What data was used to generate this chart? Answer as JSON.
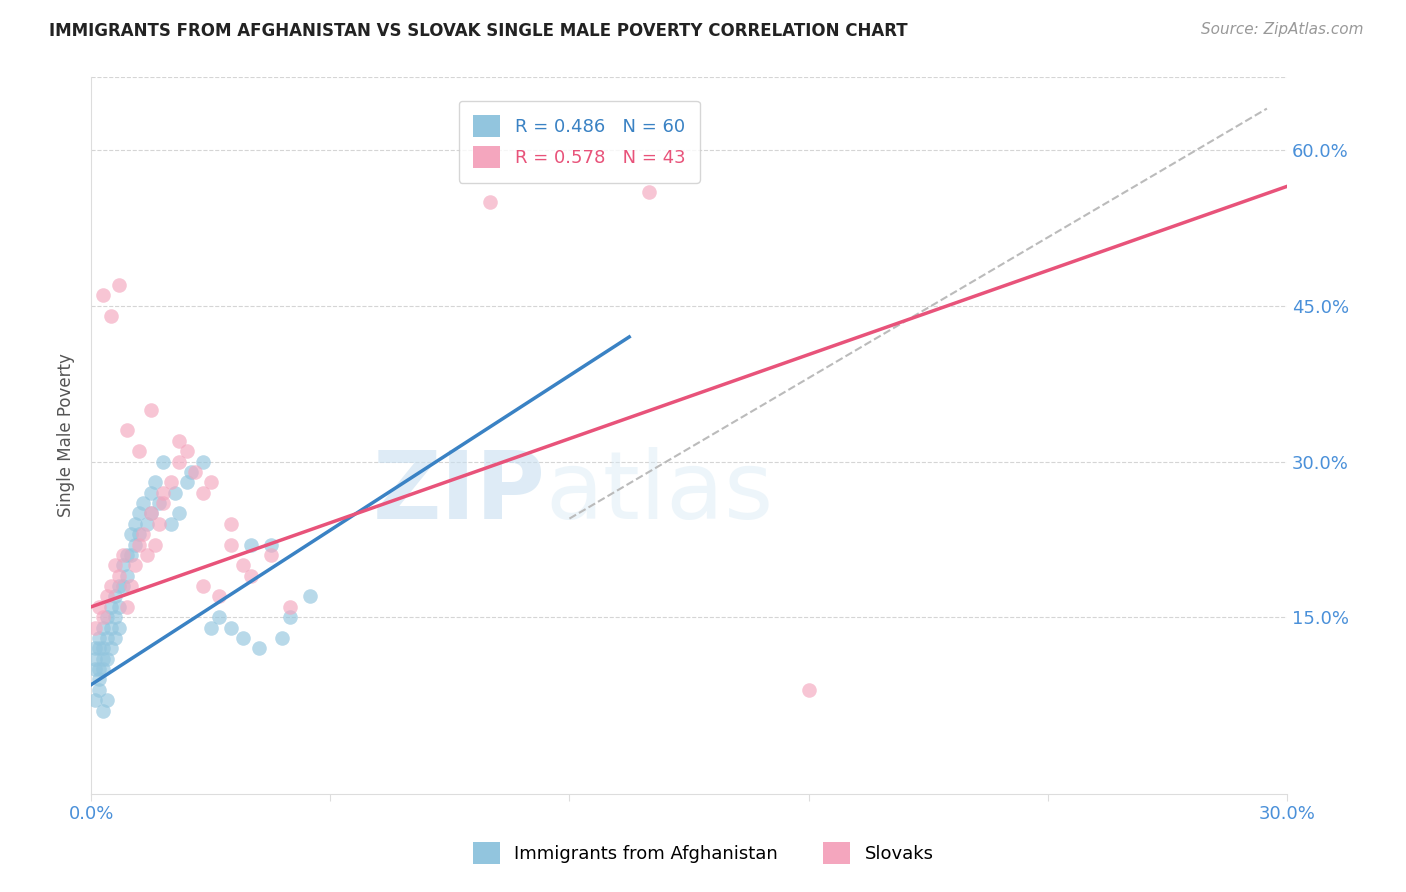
{
  "title": "IMMIGRANTS FROM AFGHANISTAN VS SLOVAK SINGLE MALE POVERTY CORRELATION CHART",
  "source": "Source: ZipAtlas.com",
  "ylabel": "Single Male Poverty",
  "ytick_labels": [
    "15.0%",
    "30.0%",
    "45.0%",
    "60.0%"
  ],
  "ytick_values": [
    0.15,
    0.3,
    0.45,
    0.6
  ],
  "xlim": [
    0.0,
    0.3
  ],
  "ylim": [
    -0.02,
    0.67
  ],
  "legend_r1": "R = 0.486",
  "legend_n1": "N = 60",
  "legend_r2": "R = 0.578",
  "legend_n2": "N = 43",
  "color_blue": "#92c5de",
  "color_pink": "#f4a6be",
  "color_blue_line": "#3a82c4",
  "color_pink_line": "#e8537a",
  "color_diagonal": "#bbbbbb",
  "watermark_zip": "ZIP",
  "watermark_atlas": "atlas",
  "afghanistan_x": [
    0.001,
    0.001,
    0.001,
    0.002,
    0.002,
    0.002,
    0.002,
    0.003,
    0.003,
    0.003,
    0.003,
    0.004,
    0.004,
    0.004,
    0.005,
    0.005,
    0.005,
    0.006,
    0.006,
    0.006,
    0.007,
    0.007,
    0.007,
    0.008,
    0.008,
    0.009,
    0.009,
    0.01,
    0.01,
    0.011,
    0.011,
    0.012,
    0.012,
    0.013,
    0.014,
    0.015,
    0.015,
    0.016,
    0.017,
    0.018,
    0.02,
    0.021,
    0.022,
    0.024,
    0.025,
    0.028,
    0.03,
    0.032,
    0.035,
    0.038,
    0.04,
    0.042,
    0.045,
    0.048,
    0.05,
    0.055,
    0.001,
    0.002,
    0.003,
    0.004
  ],
  "afghanistan_y": [
    0.12,
    0.11,
    0.1,
    0.13,
    0.12,
    0.1,
    0.09,
    0.14,
    0.12,
    0.11,
    0.1,
    0.15,
    0.13,
    0.11,
    0.16,
    0.14,
    0.12,
    0.17,
    0.15,
    0.13,
    0.18,
    0.16,
    0.14,
    0.2,
    0.18,
    0.21,
    0.19,
    0.23,
    0.21,
    0.24,
    0.22,
    0.25,
    0.23,
    0.26,
    0.24,
    0.27,
    0.25,
    0.28,
    0.26,
    0.3,
    0.24,
    0.27,
    0.25,
    0.28,
    0.29,
    0.3,
    0.14,
    0.15,
    0.14,
    0.13,
    0.22,
    0.12,
    0.22,
    0.13,
    0.15,
    0.17,
    0.07,
    0.08,
    0.06,
    0.07
  ],
  "slovak_x": [
    0.001,
    0.002,
    0.003,
    0.004,
    0.005,
    0.006,
    0.007,
    0.008,
    0.009,
    0.01,
    0.011,
    0.012,
    0.013,
    0.014,
    0.015,
    0.016,
    0.017,
    0.018,
    0.02,
    0.022,
    0.024,
    0.026,
    0.028,
    0.03,
    0.032,
    0.035,
    0.038,
    0.04,
    0.045,
    0.05,
    0.003,
    0.005,
    0.007,
    0.009,
    0.012,
    0.015,
    0.018,
    0.022,
    0.028,
    0.035,
    0.1,
    0.14,
    0.18
  ],
  "slovak_y": [
    0.14,
    0.16,
    0.15,
    0.17,
    0.18,
    0.2,
    0.19,
    0.21,
    0.16,
    0.18,
    0.2,
    0.22,
    0.23,
    0.21,
    0.25,
    0.22,
    0.24,
    0.26,
    0.28,
    0.3,
    0.31,
    0.29,
    0.27,
    0.28,
    0.17,
    0.22,
    0.2,
    0.19,
    0.21,
    0.16,
    0.46,
    0.44,
    0.47,
    0.33,
    0.31,
    0.35,
    0.27,
    0.32,
    0.18,
    0.24,
    0.55,
    0.56,
    0.08
  ],
  "blue_line_x": [
    0.0,
    0.135
  ],
  "blue_line_y": [
    0.085,
    0.42
  ],
  "pink_line_x": [
    0.0,
    0.3
  ],
  "pink_line_y": [
    0.16,
    0.565
  ],
  "diag_line_x": [
    0.12,
    0.295
  ],
  "diag_line_y": [
    0.245,
    0.64
  ]
}
